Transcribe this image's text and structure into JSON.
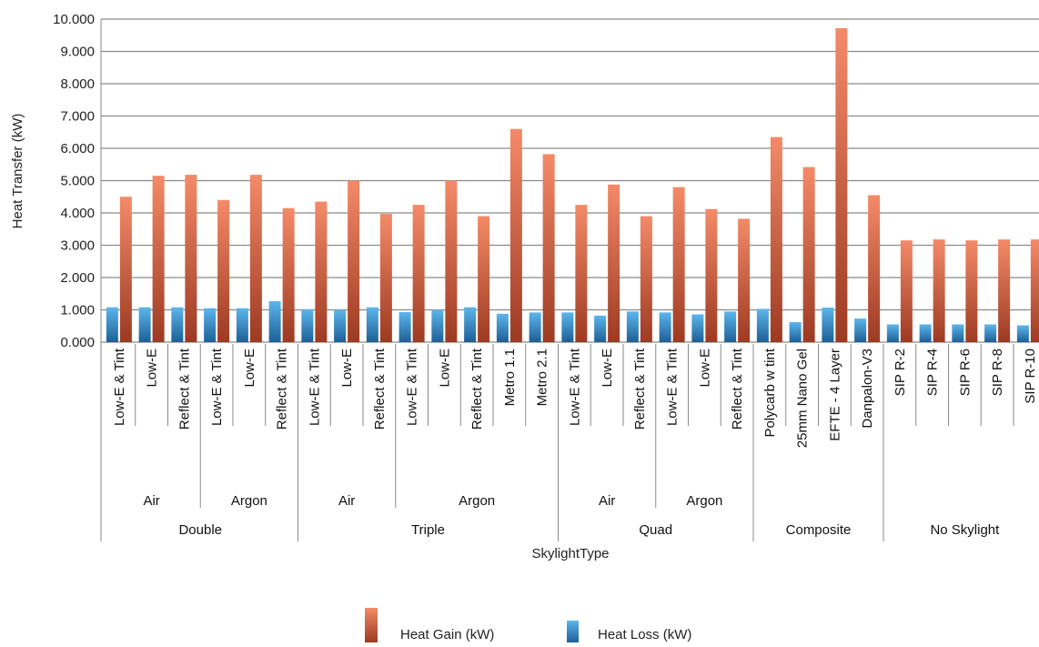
{
  "chart_data": {
    "type": "bar",
    "xlabel": "SkylightType",
    "ylabel": "Heat Transfer (kW)",
    "ylim": [
      0,
      10
    ],
    "y_ticks": [
      "0.000",
      "1.000",
      "2.000",
      "3.000",
      "4.000",
      "5.000",
      "6.000",
      "7.000",
      "8.000",
      "9.000",
      "10.000"
    ],
    "grid": true,
    "legend_position": "bottom-center",
    "categories": [
      "Low-E & Tint",
      "Low-E",
      "Reflect & Tint",
      "Low-E & Tint",
      "Low-E",
      "Reflect & Tint",
      "Low-E & Tint",
      "Low-E",
      "Reflect & Tint",
      "Low-E & Tint",
      "Low-E",
      "Reflect & Tint",
      "Metro 1.1",
      "Metro 2.1",
      "Low-E & Tint",
      "Low-E",
      "Reflect & Tint",
      "Low-E & Tint",
      "Low-E",
      "Reflect & Tint",
      "Polycarb w tint",
      "25mm Nano Gel",
      "EFTE - 4 Layer",
      "Danpalon-V3",
      "SIP R-2",
      "SIP R-4",
      "SIP R-6",
      "SIP R-8",
      "SIP R-10"
    ],
    "gas_groups": [
      {
        "label": "Air",
        "count": 3
      },
      {
        "label": "Argon",
        "count": 3
      },
      {
        "label": "Air",
        "count": 3
      },
      {
        "label": "Argon",
        "count": 5
      },
      {
        "label": "Air",
        "count": 3
      },
      {
        "label": "Argon",
        "count": 3
      }
    ],
    "type_groups": [
      {
        "label": "Double",
        "count": 6
      },
      {
        "label": "Triple",
        "count": 8
      },
      {
        "label": "Quad",
        "count": 6
      },
      {
        "label": "Composite",
        "count": 4
      },
      {
        "label": "No Skylight",
        "count": 5
      }
    ],
    "series": [
      {
        "name": "Heat Gain (kW)",
        "color": "#e8724f",
        "values": [
          4.5,
          5.15,
          5.18,
          4.4,
          5.18,
          4.15,
          4.35,
          5.0,
          3.97,
          4.25,
          5.0,
          3.9,
          6.6,
          5.82,
          4.25,
          4.88,
          3.9,
          4.8,
          4.12,
          3.82,
          6.35,
          5.42,
          9.72,
          4.55,
          3.15,
          3.18,
          3.15,
          3.18,
          3.18
        ]
      },
      {
        "name": "Heat Loss (kW)",
        "color": "#3b8fd0",
        "values": [
          1.08,
          1.08,
          1.08,
          1.05,
          1.05,
          1.27,
          1.02,
          1.0,
          1.08,
          0.93,
          1.0,
          1.08,
          0.88,
          0.92,
          0.92,
          0.82,
          0.95,
          0.92,
          0.86,
          0.95,
          1.03,
          0.62,
          1.07,
          0.73,
          0.55,
          0.55,
          0.55,
          0.55,
          0.52
        ]
      }
    ]
  }
}
